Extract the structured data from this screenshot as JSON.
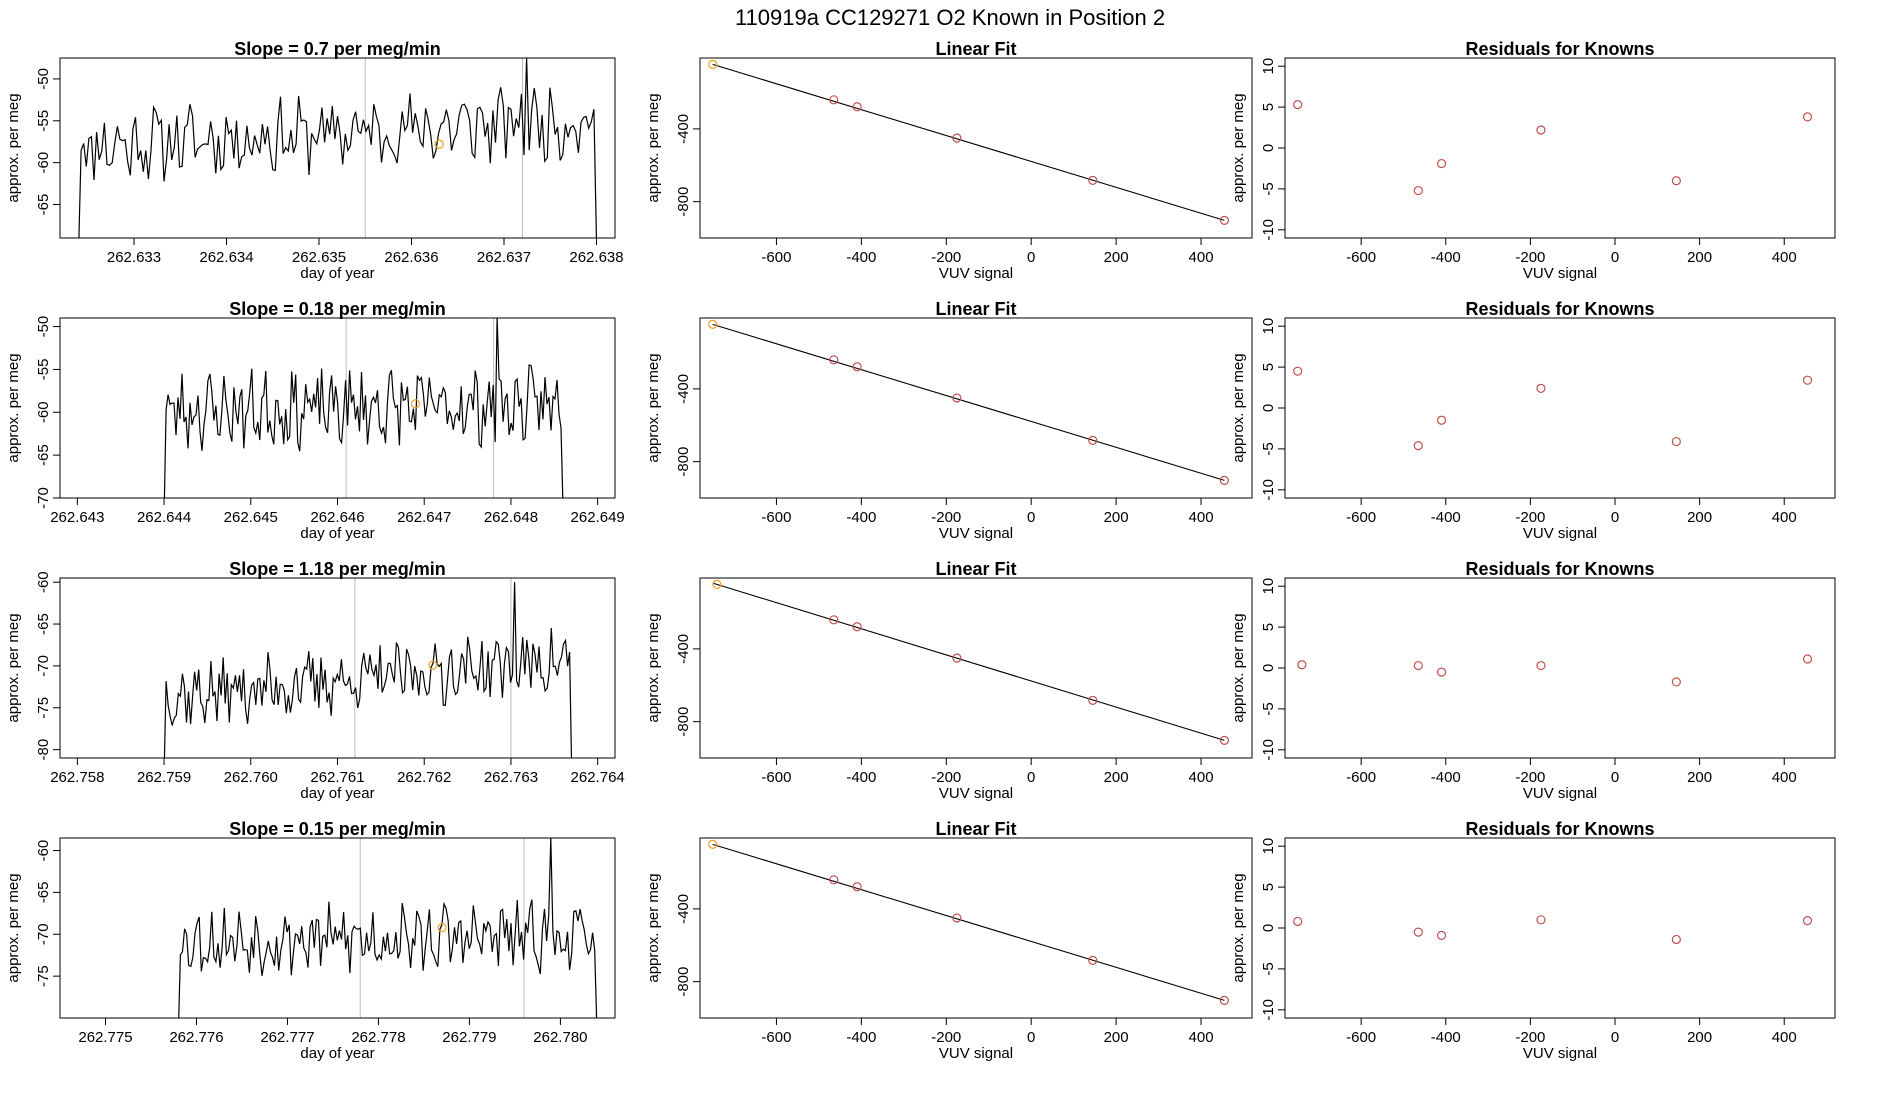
{
  "figure_title": "110919a      CC129271    O2 Known in Position  2",
  "colors": {
    "line": "#000000",
    "vline": "#bdbdbd",
    "point": "#c0504d",
    "highlight": "#f0a020"
  },
  "chart_data": [
    {
      "type": "line",
      "title": "Slope =  0.7  per meg/min",
      "xlabel": "day of year",
      "ylabel": "approx. per meg",
      "xlim": [
        262.6322,
        262.6382
      ],
      "ylim": [
        -69,
        -47.5
      ],
      "xticks": [
        262.633,
        262.634,
        262.635,
        262.636,
        262.637,
        262.638
      ],
      "xticklabels": [
        "262.633",
        "262.634",
        "262.635",
        "262.636",
        "262.637",
        "262.638"
      ],
      "yticks": [
        -65,
        -60,
        -55,
        -50
      ],
      "yticklabels": [
        "-65",
        "-60",
        "-55",
        "-50"
      ],
      "vlines": [
        262.6355,
        262.6372
      ],
      "highlight": {
        "x": 262.6363,
        "y": -57.8
      },
      "signal": {
        "start": 262.6324,
        "end": 262.638,
        "mean": -56.5,
        "trend": 0.7,
        "amp": 3.6,
        "spike_x": 262.63725,
        "spike_y": -47.5,
        "tail_y": -69.5,
        "seed": 11
      }
    },
    {
      "type": "scatter",
      "title": "Linear Fit",
      "xlabel": "VUV signal",
      "ylabel": "approx. per meg",
      "xlim": [
        -780,
        520
      ],
      "ylim": [
        -1000,
        -10
      ],
      "xticks": [
        -600,
        -400,
        -200,
        0,
        200,
        400
      ],
      "xticklabels": [
        "-600",
        "-400",
        "-200",
        "0",
        "200",
        "400"
      ],
      "yticks": [
        -400,
        -800
      ],
      "yticklabels": [
        "-400",
        "-800"
      ],
      "points": [
        [
          -750,
          -45
        ],
        [
          -465,
          -240
        ],
        [
          -410,
          -278
        ],
        [
          -175,
          -450
        ],
        [
          145,
          -683
        ],
        [
          455,
          -903
        ]
      ],
      "fit": [
        [
          -750,
          -45
        ],
        [
          455,
          -903
        ]
      ]
    },
    {
      "type": "scatter",
      "title": "Residuals for Knowns",
      "xlabel": "VUV signal",
      "ylabel": "approx. per meg",
      "xlim": [
        -780,
        520
      ],
      "ylim": [
        -11,
        11
      ],
      "xticks": [
        -600,
        -400,
        -200,
        0,
        200,
        400
      ],
      "xticklabels": [
        "-600",
        "-400",
        "-200",
        "0",
        "200",
        "400"
      ],
      "yticks": [
        -10,
        -5,
        0,
        5,
        10
      ],
      "yticklabels": [
        "-10",
        "-5",
        "0",
        "5",
        "10"
      ],
      "points": [
        [
          -750,
          5.3
        ],
        [
          -465,
          -5.2
        ],
        [
          -410,
          -1.9
        ],
        [
          -175,
          2.2
        ],
        [
          145,
          -4.0
        ],
        [
          455,
          3.8
        ]
      ]
    },
    {
      "type": "line",
      "title": "Slope =  0.18  per meg/min",
      "xlabel": "day of year",
      "ylabel": "approx. per meg",
      "xlim": [
        262.6428,
        262.6492
      ],
      "ylim": [
        -70,
        -49
      ],
      "xticks": [
        262.643,
        262.644,
        262.645,
        262.646,
        262.647,
        262.648,
        262.649
      ],
      "xticklabels": [
        "262.643",
        "262.644",
        "262.645",
        "262.646",
        "262.647",
        "262.648",
        "262.649"
      ],
      "yticks": [
        -70,
        -65,
        -60,
        -55,
        -50
      ],
      "yticklabels": [
        "-70",
        "-65",
        "-60",
        "-55",
        "-50"
      ],
      "vlines": [
        262.6461,
        262.6478
      ],
      "highlight": {
        "x": 262.6469,
        "y": -59.0
      },
      "signal": {
        "start": 262.644,
        "end": 262.6486,
        "mean": -59.5,
        "trend": 0.18,
        "amp": 3.6,
        "spike_x": 262.64785,
        "spike_y": -49,
        "tail_y": -71,
        "seed": 23
      }
    },
    {
      "type": "scatter",
      "title": "Linear Fit",
      "xlabel": "VUV signal",
      "ylabel": "approx. per meg",
      "xlim": [
        -780,
        520
      ],
      "ylim": [
        -1000,
        -10
      ],
      "xticks": [
        -600,
        -400,
        -200,
        0,
        200,
        400
      ],
      "xticklabels": [
        "-600",
        "-400",
        "-200",
        "0",
        "200",
        "400"
      ],
      "yticks": [
        -400,
        -800
      ],
      "yticklabels": [
        "-400",
        "-800"
      ],
      "points": [
        [
          -750,
          -45
        ],
        [
          -465,
          -240
        ],
        [
          -410,
          -278
        ],
        [
          -175,
          -450
        ],
        [
          145,
          -683
        ],
        [
          455,
          -903
        ]
      ],
      "fit": [
        [
          -750,
          -45
        ],
        [
          455,
          -903
        ]
      ]
    },
    {
      "type": "scatter",
      "title": "Residuals for Knowns",
      "xlabel": "VUV signal",
      "ylabel": "approx. per meg",
      "xlim": [
        -780,
        520
      ],
      "ylim": [
        -11,
        11
      ],
      "xticks": [
        -600,
        -400,
        -200,
        0,
        200,
        400
      ],
      "xticklabels": [
        "-600",
        "-400",
        "-200",
        "0",
        "200",
        "400"
      ],
      "yticks": [
        -10,
        -5,
        0,
        5,
        10
      ],
      "yticklabels": [
        "-10",
        "-5",
        "0",
        "5",
        "10"
      ],
      "points": [
        [
          -750,
          4.5
        ],
        [
          -465,
          -4.6
        ],
        [
          -410,
          -1.5
        ],
        [
          -175,
          2.4
        ],
        [
          145,
          -4.1
        ],
        [
          455,
          3.4
        ]
      ]
    },
    {
      "type": "line",
      "title": "Slope =  1.18  per meg/min",
      "xlabel": "day of year",
      "ylabel": "approx. per meg",
      "xlim": [
        262.7578,
        262.7642
      ],
      "ylim": [
        -81,
        -59.5
      ],
      "xticks": [
        262.758,
        262.759,
        262.76,
        262.761,
        262.762,
        262.763,
        262.764
      ],
      "xticklabels": [
        "262.758",
        "262.759",
        "262.760",
        "262.761",
        "262.762",
        "262.763",
        "262.764"
      ],
      "yticks": [
        -80,
        -75,
        -70,
        -65,
        -60
      ],
      "yticklabels": [
        "-80",
        "-75",
        "-70",
        "-65",
        "-60"
      ],
      "vlines": [
        262.7612,
        262.763
      ],
      "highlight": {
        "x": 262.7621,
        "y": -69.9
      },
      "signal": {
        "start": 262.759,
        "end": 262.7637,
        "mean": -71.5,
        "trend": 1.18,
        "amp": 3.2,
        "spike_x": 262.76305,
        "spike_y": -60,
        "tail_y": -82,
        "seed": 37
      }
    },
    {
      "type": "scatter",
      "title": "Linear Fit",
      "xlabel": "VUV signal",
      "ylabel": "approx. per meg",
      "xlim": [
        -780,
        520
      ],
      "ylim": [
        -1000,
        -10
      ],
      "xticks": [
        -600,
        -400,
        -200,
        0,
        200,
        400
      ],
      "xticklabels": [
        "-600",
        "-400",
        "-200",
        "0",
        "200",
        "400"
      ],
      "yticks": [
        -400,
        -800
      ],
      "yticklabels": [
        "-400",
        "-800"
      ],
      "points": [
        [
          -740,
          -45
        ],
        [
          -465,
          -240
        ],
        [
          -410,
          -278
        ],
        [
          -175,
          -450
        ],
        [
          145,
          -683
        ],
        [
          455,
          -903
        ]
      ],
      "fit": [
        [
          -750,
          -38
        ],
        [
          455,
          -903
        ]
      ]
    },
    {
      "type": "scatter",
      "title": "Residuals for Knowns",
      "xlabel": "VUV signal",
      "ylabel": "approx. per meg",
      "xlim": [
        -780,
        520
      ],
      "ylim": [
        -11,
        11
      ],
      "xticks": [
        -600,
        -400,
        -200,
        0,
        200,
        400
      ],
      "xticklabels": [
        "-600",
        "-400",
        "-200",
        "0",
        "200",
        "400"
      ],
      "yticks": [
        -10,
        -5,
        0,
        5,
        10
      ],
      "yticklabels": [
        "-10",
        "-5",
        "0",
        "5",
        "10"
      ],
      "points": [
        [
          -740,
          0.4
        ],
        [
          -465,
          0.3
        ],
        [
          -410,
          -0.5
        ],
        [
          -175,
          0.3
        ],
        [
          145,
          -1.7
        ],
        [
          455,
          1.1
        ]
      ]
    },
    {
      "type": "line",
      "title": "Slope =  0.15  per meg/min",
      "xlabel": "day of year",
      "ylabel": "approx. per meg",
      "xlim": [
        262.7745,
        262.7806
      ],
      "ylim": [
        -80,
        -58.5
      ],
      "xticks": [
        262.775,
        262.776,
        262.777,
        262.778,
        262.779,
        262.78
      ],
      "xticklabels": [
        "262.775",
        "262.776",
        "262.777",
        "262.778",
        "262.779",
        "262.780"
      ],
      "yticks": [
        -75,
        -70,
        -65,
        -60
      ],
      "yticklabels": [
        "-75",
        "-70",
        "-65",
        "-60"
      ],
      "vlines": [
        262.7778,
        262.7796
      ],
      "highlight": {
        "x": 262.7787,
        "y": -69.2
      },
      "signal": {
        "start": 262.7758,
        "end": 262.7804,
        "mean": -70.5,
        "trend": 0.15,
        "amp": 3.3,
        "spike_x": 262.7799,
        "spike_y": -58.5,
        "tail_y": -81,
        "seed": 53
      }
    },
    {
      "type": "scatter",
      "title": "Linear Fit",
      "xlabel": "VUV signal",
      "ylabel": "approx. per meg",
      "xlim": [
        -780,
        520
      ],
      "ylim": [
        -1000,
        -10
      ],
      "xticks": [
        -600,
        -400,
        -200,
        0,
        200,
        400
      ],
      "xticklabels": [
        "-600",
        "-400",
        "-200",
        "0",
        "200",
        "400"
      ],
      "yticks": [
        -400,
        -800
      ],
      "yticklabels": [
        "-400",
        "-800"
      ],
      "points": [
        [
          -750,
          -45
        ],
        [
          -465,
          -240
        ],
        [
          -410,
          -278
        ],
        [
          -175,
          -450
        ],
        [
          145,
          -683
        ],
        [
          455,
          -903
        ]
      ],
      "fit": [
        [
          -750,
          -45
        ],
        [
          455,
          -903
        ]
      ]
    },
    {
      "type": "scatter",
      "title": "Residuals for Knowns",
      "xlabel": "VUV signal",
      "ylabel": "approx. per meg",
      "xlim": [
        -780,
        520
      ],
      "ylim": [
        -11,
        11
      ],
      "xticks": [
        -600,
        -400,
        -200,
        0,
        200,
        400
      ],
      "xticklabels": [
        "-600",
        "-400",
        "-200",
        "0",
        "200",
        "400"
      ],
      "yticks": [
        -10,
        -5,
        0,
        5,
        10
      ],
      "yticklabels": [
        "-10",
        "-5",
        "0",
        "5",
        "10"
      ],
      "points": [
        [
          -750,
          0.8
        ],
        [
          -465,
          -0.5
        ],
        [
          -410,
          -0.9
        ],
        [
          -175,
          1.0
        ],
        [
          145,
          -1.4
        ],
        [
          455,
          0.9
        ]
      ]
    }
  ]
}
